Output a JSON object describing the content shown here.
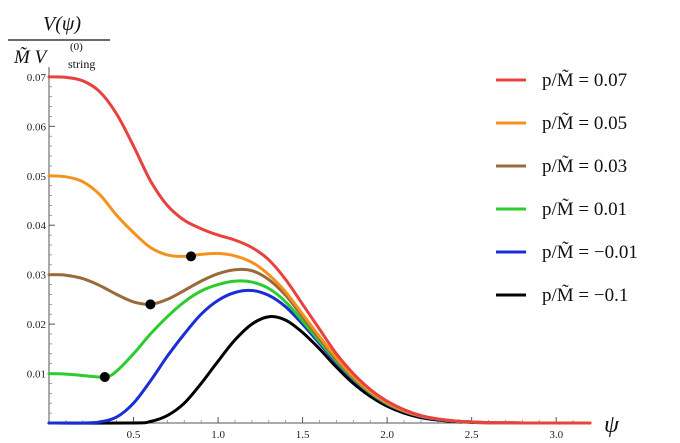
{
  "chart_data": {
    "type": "line",
    "ylabel_numerator": "V(ψ)",
    "ylabel_denominator_main": "M̃ V",
    "ylabel_denominator_sub": "string",
    "ylabel_denominator_sup": "(0)",
    "xlabel": "ψ",
    "xlim": [
      0,
      3.2
    ],
    "ylim": [
      0,
      0.072
    ],
    "x_ticks": [
      "0.5",
      "1.0",
      "1.5",
      "2.0",
      "2.5",
      "3.0"
    ],
    "y_ticks": [
      "0.01",
      "0.02",
      "0.03",
      "0.04",
      "0.05",
      "0.06",
      "0.07"
    ],
    "x_tick_values": [
      0.5,
      1.0,
      1.5,
      2.0,
      2.5,
      3.0
    ],
    "y_tick_values": [
      0.01,
      0.02,
      0.03,
      0.04,
      0.05,
      0.06,
      0.07
    ],
    "legend_position": "right",
    "series": [
      {
        "name": "p/M̃ = 0.07",
        "color": "#e8413e",
        "points": [
          [
            0,
            0.07
          ],
          [
            0.1,
            0.0699
          ],
          [
            0.2,
            0.0692
          ],
          [
            0.3,
            0.067
          ],
          [
            0.4,
            0.0625
          ],
          [
            0.5,
            0.056
          ],
          [
            0.6,
            0.049
          ],
          [
            0.7,
            0.044
          ],
          [
            0.8,
            0.041
          ],
          [
            0.9,
            0.0393
          ],
          [
            1.0,
            0.038
          ],
          [
            1.1,
            0.037
          ],
          [
            1.2,
            0.0355
          ],
          [
            1.3,
            0.033
          ],
          [
            1.4,
            0.029
          ],
          [
            1.5,
            0.024
          ],
          [
            1.6,
            0.019
          ],
          [
            1.7,
            0.014
          ],
          [
            1.8,
            0.01
          ],
          [
            1.9,
            0.0068
          ],
          [
            2.0,
            0.0044
          ],
          [
            2.1,
            0.0027
          ],
          [
            2.2,
            0.0015
          ],
          [
            2.3,
            0.0008
          ],
          [
            2.4,
            0.0004
          ],
          [
            2.5,
            0.0002
          ],
          [
            2.6,
            8e-05
          ],
          [
            2.7,
            3e-05
          ],
          [
            2.8,
            1e-05
          ],
          [
            3.0,
            0
          ],
          [
            3.2,
            0
          ]
        ]
      },
      {
        "name": "p/M̃ = 0.05",
        "color": "#f5911e",
        "points": [
          [
            0,
            0.05
          ],
          [
            0.1,
            0.0498
          ],
          [
            0.2,
            0.0488
          ],
          [
            0.3,
            0.0462
          ],
          [
            0.4,
            0.042
          ],
          [
            0.5,
            0.0385
          ],
          [
            0.6,
            0.0355
          ],
          [
            0.7,
            0.034
          ],
          [
            0.8,
            0.0337
          ],
          [
            0.9,
            0.0341
          ],
          [
            1.0,
            0.0343
          ],
          [
            1.1,
            0.0338
          ],
          [
            1.2,
            0.0325
          ],
          [
            1.3,
            0.03
          ],
          [
            1.4,
            0.0265
          ],
          [
            1.5,
            0.022
          ],
          [
            1.6,
            0.0175
          ],
          [
            1.7,
            0.0132
          ],
          [
            1.8,
            0.0094
          ],
          [
            1.9,
            0.0064
          ],
          [
            2.0,
            0.0041
          ],
          [
            2.1,
            0.0025
          ],
          [
            2.2,
            0.0014
          ],
          [
            2.3,
            0.0008
          ],
          [
            2.4,
            0.0004
          ],
          [
            2.5,
            0.0002
          ],
          [
            2.6,
            8e-05
          ],
          [
            2.7,
            3e-05
          ],
          [
            2.8,
            1e-05
          ],
          [
            3.0,
            0
          ],
          [
            3.2,
            0
          ]
        ]
      },
      {
        "name": "p/M̃ = 0.03",
        "color": "#9b6a3a",
        "points": [
          [
            0,
            0.03
          ],
          [
            0.1,
            0.0299
          ],
          [
            0.2,
            0.0292
          ],
          [
            0.3,
            0.0278
          ],
          [
            0.4,
            0.026
          ],
          [
            0.5,
            0.0245
          ],
          [
            0.6,
            0.024
          ],
          [
            0.7,
            0.025
          ],
          [
            0.8,
            0.0268
          ],
          [
            0.9,
            0.0287
          ],
          [
            1.0,
            0.0302
          ],
          [
            1.1,
            0.031
          ],
          [
            1.2,
            0.0308
          ],
          [
            1.3,
            0.029
          ],
          [
            1.4,
            0.0258
          ],
          [
            1.5,
            0.0215
          ],
          [
            1.6,
            0.0171
          ],
          [
            1.7,
            0.0129
          ],
          [
            1.8,
            0.0092
          ],
          [
            1.9,
            0.0063
          ],
          [
            2.0,
            0.004
          ],
          [
            2.1,
            0.0024
          ],
          [
            2.2,
            0.0014
          ],
          [
            2.3,
            0.0008
          ],
          [
            2.4,
            0.0004
          ],
          [
            2.5,
            0.0002
          ],
          [
            2.6,
            8e-05
          ],
          [
            2.7,
            3e-05
          ],
          [
            2.8,
            1e-05
          ],
          [
            3.0,
            0
          ],
          [
            3.2,
            0
          ]
        ]
      },
      {
        "name": "p/M̃ = 0.01",
        "color": "#2dcc2d",
        "points": [
          [
            0,
            0.01
          ],
          [
            0.1,
            0.0099
          ],
          [
            0.2,
            0.0096
          ],
          [
            0.3,
            0.0093
          ],
          [
            0.35,
            0.0094
          ],
          [
            0.4,
            0.0105
          ],
          [
            0.5,
            0.014
          ],
          [
            0.6,
            0.018
          ],
          [
            0.7,
            0.0215
          ],
          [
            0.8,
            0.0245
          ],
          [
            0.9,
            0.0267
          ],
          [
            1.0,
            0.028
          ],
          [
            1.1,
            0.0287
          ],
          [
            1.2,
            0.0285
          ],
          [
            1.3,
            0.0272
          ],
          [
            1.4,
            0.0245
          ],
          [
            1.5,
            0.0206
          ],
          [
            1.6,
            0.0165
          ],
          [
            1.7,
            0.0125
          ],
          [
            1.8,
            0.009
          ],
          [
            1.9,
            0.0061
          ],
          [
            2.0,
            0.0039
          ],
          [
            2.1,
            0.0024
          ],
          [
            2.2,
            0.0014
          ],
          [
            2.3,
            0.0008
          ],
          [
            2.4,
            0.0004
          ],
          [
            2.5,
            0.0002
          ],
          [
            2.6,
            8e-05
          ],
          [
            2.7,
            3e-05
          ],
          [
            2.8,
            1e-05
          ],
          [
            3.0,
            0
          ],
          [
            3.2,
            0
          ]
        ]
      },
      {
        "name": "p/M̃ = −0.01",
        "color": "#1a2ed6",
        "points": [
          [
            0,
            0
          ],
          [
            0.2,
            0
          ],
          [
            0.3,
            0.0002
          ],
          [
            0.4,
            0.0012
          ],
          [
            0.5,
            0.004
          ],
          [
            0.6,
            0.0085
          ],
          [
            0.7,
            0.0135
          ],
          [
            0.8,
            0.018
          ],
          [
            0.9,
            0.022
          ],
          [
            1.0,
            0.0248
          ],
          [
            1.1,
            0.0264
          ],
          [
            1.2,
            0.0268
          ],
          [
            1.3,
            0.0258
          ],
          [
            1.4,
            0.0235
          ],
          [
            1.5,
            0.02
          ],
          [
            1.6,
            0.0161
          ],
          [
            1.7,
            0.0122
          ],
          [
            1.8,
            0.0088
          ],
          [
            1.9,
            0.006
          ],
          [
            2.0,
            0.0038
          ],
          [
            2.1,
            0.0023
          ],
          [
            2.2,
            0.0013
          ],
          [
            2.3,
            0.0007
          ],
          [
            2.4,
            0.0004
          ],
          [
            2.5,
            0.0002
          ],
          [
            2.6,
            8e-05
          ],
          [
            2.7,
            3e-05
          ],
          [
            2.8,
            1e-05
          ],
          [
            3.0,
            0
          ],
          [
            3.2,
            0
          ]
        ]
      },
      {
        "name": "p/M̃ = −0.1",
        "color": "#000000",
        "points": [
          [
            0,
            0
          ],
          [
            0.5,
            0
          ],
          [
            0.6,
            0.0003
          ],
          [
            0.7,
            0.0015
          ],
          [
            0.8,
            0.004
          ],
          [
            0.9,
            0.008
          ],
          [
            1.0,
            0.0125
          ],
          [
            1.1,
            0.0168
          ],
          [
            1.2,
            0.02
          ],
          [
            1.3,
            0.0215
          ],
          [
            1.4,
            0.0208
          ],
          [
            1.5,
            0.0183
          ],
          [
            1.6,
            0.015
          ],
          [
            1.7,
            0.0113
          ],
          [
            1.8,
            0.008
          ],
          [
            1.9,
            0.0054
          ],
          [
            2.0,
            0.0034
          ],
          [
            2.1,
            0.002
          ],
          [
            2.2,
            0.0011
          ],
          [
            2.3,
            0.0006
          ],
          [
            2.4,
            0.0003
          ],
          [
            2.5,
            0.00012
          ],
          [
            2.6,
            5e-05
          ],
          [
            2.7,
            2e-05
          ],
          [
            2.8,
            0
          ],
          [
            3.0,
            0
          ],
          [
            3.2,
            0
          ]
        ]
      }
    ],
    "markers": [
      {
        "x": 0.84,
        "y": 0.0337,
        "color": "#000000"
      },
      {
        "x": 0.6,
        "y": 0.024,
        "color": "#000000"
      },
      {
        "x": 0.33,
        "y": 0.0093,
        "color": "#000000"
      }
    ]
  }
}
